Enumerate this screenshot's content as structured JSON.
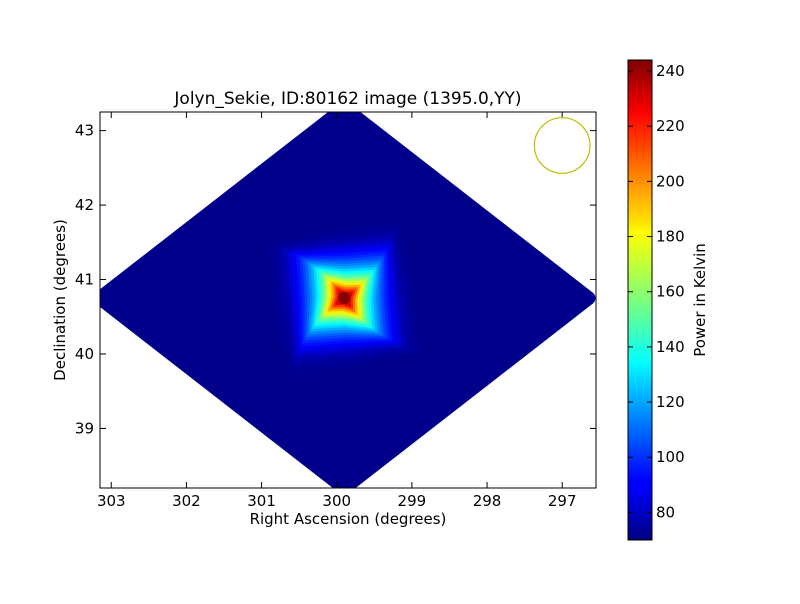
{
  "chart_data": {
    "type": "heatmap",
    "title": "Jolyn_Sekie, ID:80162 image (1395.0,YY)",
    "xlabel": "Right Ascension (degrees)",
    "ylabel": "Declination (degrees)",
    "xlim": [
      303.15,
      296.55
    ],
    "ylim": [
      38.2,
      43.25
    ],
    "x_inverted": true,
    "x_ticks": [
      303,
      302,
      301,
      300,
      299,
      298,
      297
    ],
    "y_ticks": [
      39,
      40,
      41,
      42,
      43
    ],
    "grid": false,
    "map": {
      "shape": "diamond",
      "center": [
        299.9,
        40.75
      ],
      "half_width_ra": 3.25,
      "half_height_dec": 2.55,
      "background_kelvin": 72,
      "peak_kelvin": 243,
      "peak_position": [
        299.9,
        40.75
      ]
    },
    "beam_marker": {
      "center": [
        297.0,
        42.8
      ],
      "radius_deg": 0.37,
      "color": "#bfbf00"
    },
    "colorbar": {
      "label": "Power in Kelvin",
      "min": 70,
      "max": 244,
      "ticks": [
        80,
        100,
        120,
        140,
        160,
        180,
        200,
        220,
        240
      ],
      "colormap": "jet"
    }
  }
}
